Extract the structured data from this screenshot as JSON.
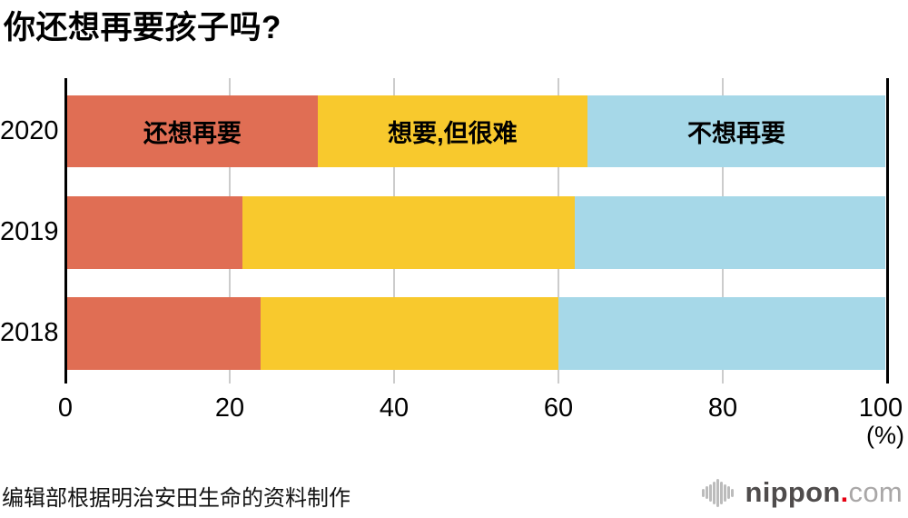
{
  "title": "你还想再要孩子吗?",
  "source_note": "编辑部根据明治安田生命的资料制作",
  "logo": {
    "icon": "sound-bars-icon",
    "text_main": "nippon",
    "text_dot": ".",
    "text_suffix": "com"
  },
  "colors": {
    "still_want": "#e06e54",
    "want_but_hard": "#f8c92d",
    "no_more": "#a6d8e8",
    "gridline": "#cccccc",
    "axis": "#000000",
    "logo_dot_red": "#e60012"
  },
  "chart_data": {
    "type": "bar",
    "stacked": true,
    "orientation": "horizontal",
    "title": "你还想再要孩子吗?",
    "unit": "(%)",
    "categories": [
      "2020",
      "2019",
      "2018"
    ],
    "series": [
      {
        "name": "还想再要",
        "color": "#e06e54",
        "values": [
          30.6,
          21.4,
          23.6
        ]
      },
      {
        "name": "想要,但很难",
        "color": "#f8c92d",
        "values": [
          33.0,
          40.6,
          36.5
        ]
      },
      {
        "name": "不想再要",
        "color": "#a6d8e8",
        "values": [
          36.4,
          38.0,
          39.9
        ]
      }
    ],
    "x_ticks": [
      "0",
      "20",
      "40",
      "60",
      "80",
      "100"
    ],
    "xlim": [
      0,
      100
    ],
    "grid": true,
    "legend": "labels-inside-first-bar",
    "source": "编辑部根据明治安田生命的资料制作"
  }
}
